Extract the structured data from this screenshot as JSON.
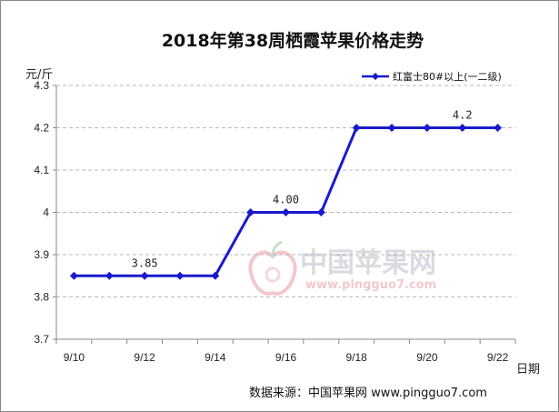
{
  "chart_data": {
    "type": "line",
    "title": "2018年第38周栖霞苹果价格走势",
    "ylabel": "元/斤",
    "xlabel": "日期",
    "ylim": [
      3.7,
      4.3
    ],
    "yticks": [
      "3.7",
      "3.8",
      "3.9",
      "4",
      "4.1",
      "4.2",
      "4.3"
    ],
    "xticks": [
      "9/10",
      "9/12",
      "9/14",
      "9/16",
      "9/18",
      "9/20",
      "9/22"
    ],
    "x": [
      "9/10",
      "9/11",
      "9/12",
      "9/13",
      "9/14",
      "9/15",
      "9/16",
      "9/17",
      "9/18",
      "9/19",
      "9/20",
      "9/21",
      "9/22"
    ],
    "series": [
      {
        "name": "红富士80#以上(一二级)",
        "color": "#1a1acc",
        "values": [
          3.85,
          3.85,
          3.85,
          3.85,
          3.85,
          4.0,
          4.0,
          4.0,
          4.2,
          4.2,
          4.2,
          4.2,
          4.2
        ]
      }
    ],
    "data_labels": [
      {
        "x": "9/12",
        "text": "3.85"
      },
      {
        "x": "9/16",
        "text": "4.00"
      },
      {
        "x": "9/21",
        "text": "4.2"
      }
    ],
    "grid": "horizontal dashed",
    "legend": "top-right"
  },
  "source_text": "数据来源：中国苹果网 www.pingguo7.com",
  "watermark": {
    "name": "中国苹果网",
    "url": "www.pingguo7.com",
    "icon": "apple-logo-icon"
  }
}
